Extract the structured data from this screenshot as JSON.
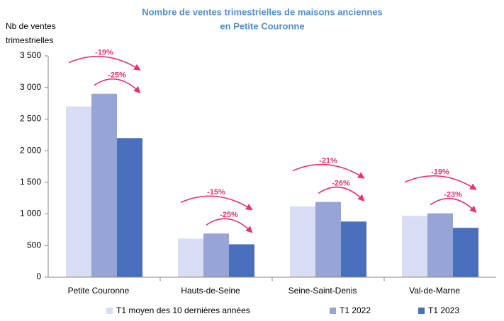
{
  "chart_data": {
    "type": "bar",
    "title": [
      "Nombre de ventes trimestrielles de maisons anciennes",
      "en Petite Couronne"
    ],
    "y_label": [
      "Nb de ventes",
      "trimestrielles"
    ],
    "categories": [
      "Petite Couronne",
      "Hauts-de-Seine",
      "Seine-Saint-Denis",
      "Val-de-Marne"
    ],
    "series": [
      {
        "name": "T1 moyen des 10 dernières années",
        "color": "#d9ddf3",
        "values": [
          2700,
          610,
          1120,
          970
        ]
      },
      {
        "name": "T1 2022",
        "color": "#97a4d6",
        "values": [
          2900,
          690,
          1190,
          1010
        ]
      },
      {
        "name": "T1 2023",
        "color": "#4a6fbd",
        "values": [
          2200,
          520,
          880,
          780
        ]
      }
    ],
    "annotations": [
      [
        "-19%",
        "-25%"
      ],
      [
        "-15%",
        "-25%"
      ],
      [
        "-21%",
        "-26%"
      ],
      [
        "-19%",
        "-23%"
      ]
    ],
    "annotation_color": "#e8336d",
    "ylim": [
      0,
      3500
    ],
    "yticks": [
      0,
      500,
      {
        "value": 1000,
        "label": "1 000"
      },
      {
        "value": 1500,
        "label": "1 500"
      },
      {
        "value": 2000,
        "label": "2 000"
      },
      {
        "value": 2500,
        "label": "2 500"
      },
      {
        "value": 3000,
        "label": "3 000"
      },
      {
        "value": 3500,
        "label": "3 500"
      }
    ],
    "grid": false,
    "legend": "bottom"
  }
}
